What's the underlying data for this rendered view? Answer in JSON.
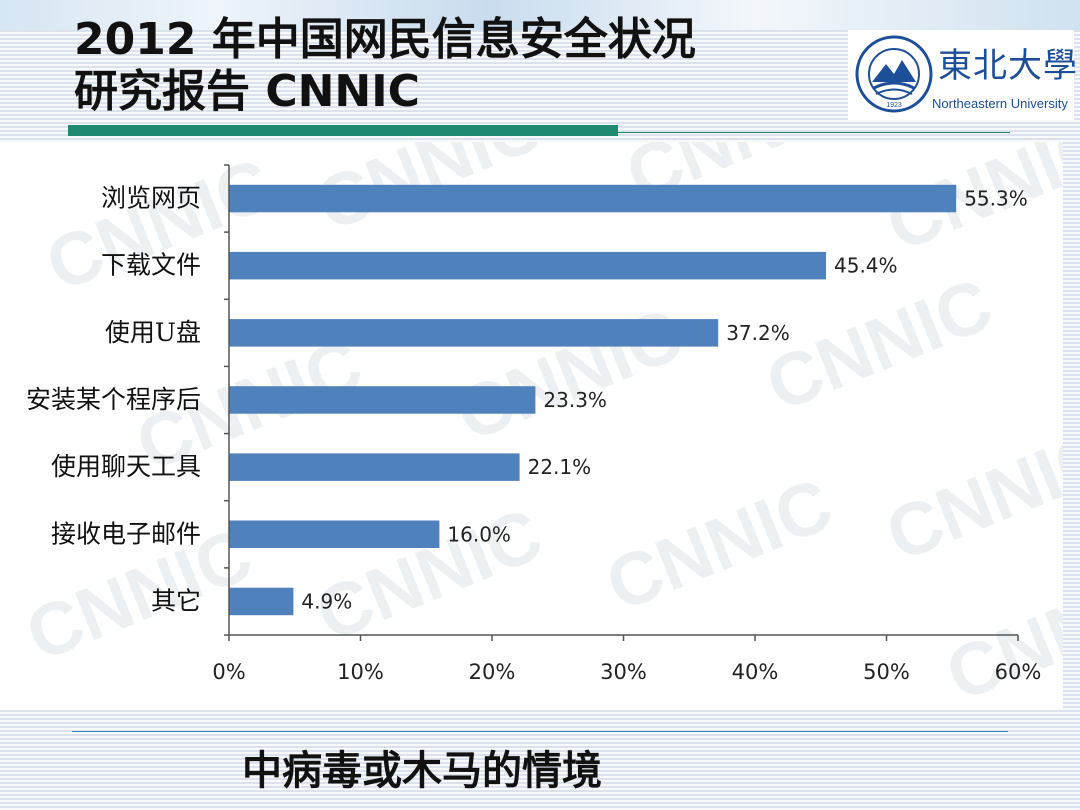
{
  "slide": {
    "title_line1": "2012 年中国网民信息安全状况",
    "title_line2": "研究报告  CNNIC",
    "caption": "中病毒或木马的情境"
  },
  "logo": {
    "cn": "東北大學",
    "en": "Northeastern University",
    "seal_year": "1923"
  },
  "watermark": "CNNIC",
  "colors": {
    "bar": "#4f81bd",
    "accent": "#1f8a70",
    "rule": "#2a88b8"
  },
  "chart_data": {
    "type": "bar",
    "orientation": "horizontal",
    "categories": [
      "浏览网页",
      "下载文件",
      "使用U盘",
      "安装某个程序后",
      "使用聊天工具",
      "接收电子邮件",
      "其它"
    ],
    "values": [
      55.3,
      45.4,
      37.2,
      23.3,
      22.1,
      16.0,
      4.9
    ],
    "value_labels": [
      "55.3%",
      "45.4%",
      "37.2%",
      "23.3%",
      "22.1%",
      "16.0%",
      "4.9%"
    ],
    "x_ticks": [
      "0%",
      "10%",
      "20%",
      "30%",
      "40%",
      "50%",
      "60%"
    ],
    "xlim": [
      0,
      60
    ],
    "grid": false,
    "title": "",
    "xlabel": "",
    "ylabel": ""
  }
}
